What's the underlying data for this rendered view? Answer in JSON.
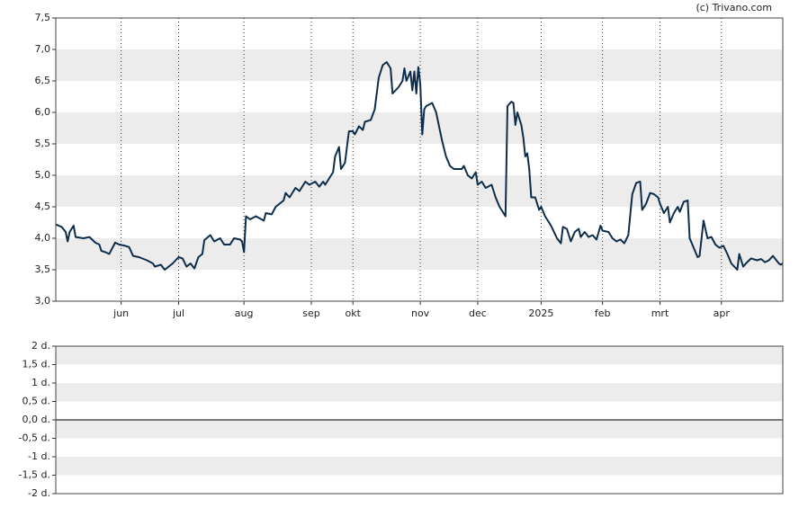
{
  "chart_data": [
    {
      "type": "line",
      "annotation": "(c) Trivano.com",
      "color": "#0d2d4a",
      "bands": true,
      "xlim": [
        0,
        367
      ],
      "xticks": [
        {
          "value": 33,
          "label": "jun"
        },
        {
          "value": 62,
          "label": "jul"
        },
        {
          "value": 95,
          "label": "aug"
        },
        {
          "value": 129,
          "label": "sep"
        },
        {
          "value": 150,
          "label": "okt"
        },
        {
          "value": 184,
          "label": "nov"
        },
        {
          "value": 213,
          "label": "dec"
        },
        {
          "value": 245,
          "label": "2025"
        },
        {
          "value": 276,
          "label": "feb"
        },
        {
          "value": 305,
          "label": "mrt"
        },
        {
          "value": 336,
          "label": "apr"
        }
      ],
      "ylim": [
        3,
        7.5
      ],
      "yticks": [
        {
          "value": 3,
          "label": "3,0"
        },
        {
          "value": 3.5,
          "label": "3,5"
        },
        {
          "value": 4,
          "label": "4,0"
        },
        {
          "value": 4.5,
          "label": "4,5"
        },
        {
          "value": 5,
          "label": "5,0"
        },
        {
          "value": 5.5,
          "label": "5,5"
        },
        {
          "value": 6,
          "label": "6,0"
        },
        {
          "value": 6.5,
          "label": "6,5"
        },
        {
          "value": 7,
          "label": "7,0"
        },
        {
          "value": 7.5,
          "label": "7,5"
        }
      ],
      "x": [
        0,
        3,
        5,
        6,
        7,
        9,
        10,
        14,
        17,
        20,
        22,
        23,
        25,
        27,
        30,
        32,
        35,
        37,
        39,
        42,
        46,
        49,
        50,
        53,
        55,
        57,
        59,
        62,
        64,
        66,
        68,
        70,
        72,
        74,
        75,
        78,
        80,
        83,
        85,
        88,
        90,
        93,
        94,
        95,
        96,
        98,
        101,
        105,
        106,
        109,
        111,
        115,
        116,
        118,
        121,
        123,
        126,
        128,
        131,
        133,
        135,
        136,
        138,
        140,
        141,
        143,
        144,
        146,
        148,
        150,
        151,
        153,
        155,
        156,
        159,
        161,
        163,
        165,
        167,
        169,
        170,
        173,
        175,
        176,
        177,
        179,
        180,
        181,
        182,
        183,
        184,
        185,
        186,
        187,
        190,
        192,
        195,
        197,
        199,
        201,
        205,
        206,
        208,
        210,
        212,
        213,
        215,
        217,
        220,
        222,
        224,
        227,
        228,
        230,
        231,
        232,
        233,
        235,
        236,
        237,
        238,
        239,
        240,
        242,
        244,
        245,
        247,
        250,
        253,
        255,
        256,
        258,
        260,
        262,
        264,
        265,
        267,
        269,
        271,
        273,
        275,
        276,
        279,
        281,
        283,
        285,
        287,
        289,
        291,
        293,
        295,
        296,
        298,
        300,
        302,
        304,
        305,
        307,
        309,
        310,
        312,
        314,
        315,
        317,
        319,
        320,
        322,
        324,
        325,
        327,
        329,
        331,
        333,
        335,
        337,
        339,
        341,
        344,
        345,
        347,
        349,
        351,
        354,
        356,
        358,
        360,
        362,
        365,
        366,
        367
      ],
      "values": [
        4.22,
        4.18,
        4.1,
        3.95,
        4.1,
        4.2,
        4.02,
        4.0,
        4.02,
        3.93,
        3.9,
        3.8,
        3.78,
        3.75,
        3.93,
        3.9,
        3.88,
        3.86,
        3.72,
        3.7,
        3.65,
        3.6,
        3.55,
        3.58,
        3.5,
        3.55,
        3.6,
        3.7,
        3.68,
        3.55,
        3.6,
        3.52,
        3.7,
        3.75,
        3.97,
        4.05,
        3.95,
        4.0,
        3.9,
        3.9,
        4.0,
        3.98,
        3.95,
        3.78,
        4.35,
        4.3,
        4.35,
        4.28,
        4.4,
        4.38,
        4.5,
        4.6,
        4.72,
        4.65,
        4.8,
        4.75,
        4.9,
        4.85,
        4.9,
        4.82,
        4.9,
        4.85,
        4.95,
        5.05,
        5.3,
        5.45,
        5.1,
        5.2,
        5.7,
        5.7,
        5.65,
        5.78,
        5.72,
        5.85,
        5.88,
        6.05,
        6.55,
        6.75,
        6.8,
        6.7,
        6.3,
        6.4,
        6.5,
        6.7,
        6.5,
        6.65,
        6.35,
        6.65,
        6.3,
        6.72,
        6.45,
        5.65,
        6.05,
        6.1,
        6.15,
        6.0,
        5.55,
        5.3,
        5.15,
        5.1,
        5.1,
        5.15,
        5.0,
        4.95,
        5.05,
        4.85,
        4.9,
        4.8,
        4.85,
        4.65,
        4.5,
        4.35,
        6.1,
        6.17,
        6.15,
        5.8,
        6.0,
        5.8,
        5.6,
        5.3,
        5.35,
        5.1,
        4.65,
        4.65,
        4.45,
        4.5,
        4.35,
        4.2,
        4.0,
        3.92,
        4.18,
        4.15,
        3.95,
        4.1,
        4.15,
        4.02,
        4.1,
        4.02,
        4.05,
        3.98,
        4.2,
        4.12,
        4.1,
        4.0,
        3.95,
        3.98,
        3.92,
        4.05,
        4.7,
        4.88,
        4.9,
        4.45,
        4.55,
        4.72,
        4.7,
        4.65,
        4.55,
        4.4,
        4.5,
        4.25,
        4.4,
        4.5,
        4.42,
        4.58,
        4.6,
        4.0,
        3.85,
        3.7,
        3.72,
        4.28,
        4.0,
        4.02,
        3.9,
        3.85,
        3.88,
        3.75,
        3.6,
        3.5,
        3.75,
        3.55,
        3.62,
        3.68,
        3.65,
        3.67,
        3.62,
        3.65,
        3.72,
        3.6,
        3.58,
        3.6
      ]
    },
    {
      "type": "line",
      "bands": true,
      "zero_line": true,
      "ylim": [
        -2,
        2
      ],
      "yticks": [
        {
          "value": -2,
          "label": "-2 d."
        },
        {
          "value": -1.5,
          "label": "-1,5 d."
        },
        {
          "value": -1,
          "label": "-1 d."
        },
        {
          "value": -0.5,
          "label": "-0,5 d."
        },
        {
          "value": 0,
          "label": "0,0 d."
        },
        {
          "value": 0.5,
          "label": "0,5 d."
        },
        {
          "value": 1,
          "label": "1 d."
        },
        {
          "value": 1.5,
          "label": "1,5 d."
        },
        {
          "value": 2,
          "label": "2 d."
        }
      ]
    }
  ]
}
